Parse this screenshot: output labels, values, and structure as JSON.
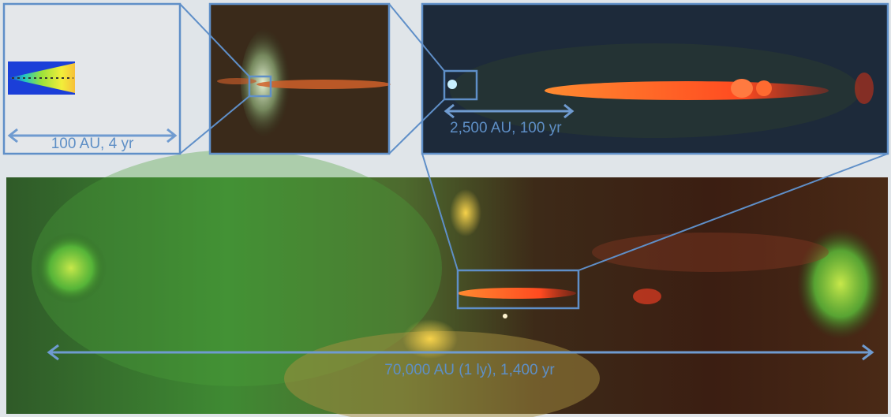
{
  "scale_labels": {
    "disk": "100 AU, 4 yr",
    "inner_jet": "2,500 AU, 100 yr",
    "full_outflow": "70,000 AU (1 ly), 1,400 yr"
  }
}
